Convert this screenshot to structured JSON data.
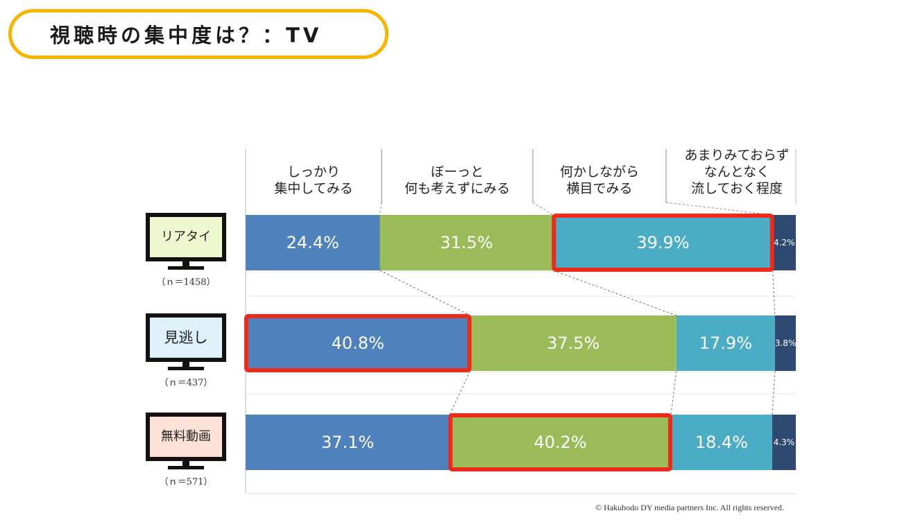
{
  "page": {
    "title": "視聴時の集中度は？：TV",
    "copyright": "© Hakuhodo DY media partners Inc. All rights reserved."
  },
  "chart_data": {
    "type": "bar",
    "stacked": true,
    "orientation": "horizontal",
    "unit": "%",
    "categories": [
      "リアタイ",
      "見逃し",
      "無料動画"
    ],
    "sample_sizes": [
      "（ｎ＝1458）",
      "（ｎ＝437）",
      "（ｎ＝571）"
    ],
    "series": [
      {
        "name": "しっかり集中してみる",
        "label_lines": [
          "しっかり",
          "集中してみる"
        ],
        "color": "#4f81bd",
        "values": [
          24.4,
          40.8,
          37.1
        ]
      },
      {
        "name": "ぼーっと何も考えずにみる",
        "label_lines": [
          "ぼーっと",
          "何も考えずにみる"
        ],
        "color": "#9bbb59",
        "values": [
          31.5,
          37.5,
          40.2
        ]
      },
      {
        "name": "何かしながら横目でみる",
        "label_lines": [
          "何かしながら",
          "横目でみる"
        ],
        "color": "#4bacc6",
        "values": [
          39.9,
          17.9,
          18.4
        ]
      },
      {
        "name": "あまりみておらずなんとなく流しておく程度",
        "label_lines": [
          "あまりみておらず",
          "なんとなく",
          "流しておく程度"
        ],
        "color": "#2e4a72",
        "values": [
          4.2,
          3.8,
          4.3
        ]
      }
    ],
    "value_labels": [
      [
        "24.4%",
        "31.5%",
        "39.9%",
        "4.2%"
      ],
      [
        "40.8%",
        "37.5%",
        "17.9%",
        "3.8%"
      ],
      [
        "37.1%",
        "40.2%",
        "18.4%",
        "4.3%"
      ]
    ],
    "highlighted": [
      [
        0,
        2
      ],
      [
        1,
        0
      ],
      [
        2,
        1
      ]
    ],
    "highlight_color": "#ee2a1b",
    "tv_screen_colors": [
      "#eef7cf",
      "#dff1f8",
      "#fde0d6"
    ],
    "xlim": [
      0,
      100
    ],
    "grid": false,
    "legend": "top"
  }
}
